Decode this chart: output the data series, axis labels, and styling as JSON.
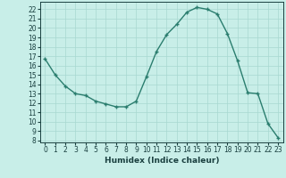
{
  "x": [
    0,
    1,
    2,
    3,
    4,
    5,
    6,
    7,
    8,
    9,
    10,
    11,
    12,
    13,
    14,
    15,
    16,
    17,
    18,
    19,
    20,
    21,
    22,
    23
  ],
  "y": [
    16.7,
    15.0,
    13.8,
    13.0,
    12.8,
    12.2,
    11.9,
    11.6,
    11.6,
    12.2,
    14.8,
    17.5,
    19.3,
    20.4,
    21.7,
    22.2,
    22.0,
    21.5,
    19.4,
    16.5,
    13.1,
    13.0,
    9.8,
    8.3
  ],
  "xlabel": "Humidex (Indice chaleur)",
  "xlim": [
    -0.5,
    23.5
  ],
  "ylim": [
    7.8,
    22.8
  ],
  "yticks": [
    8,
    9,
    10,
    11,
    12,
    13,
    14,
    15,
    16,
    17,
    18,
    19,
    20,
    21,
    22
  ],
  "xticks": [
    0,
    1,
    2,
    3,
    4,
    5,
    6,
    7,
    8,
    9,
    10,
    11,
    12,
    13,
    14,
    15,
    16,
    17,
    18,
    19,
    20,
    21,
    22,
    23
  ],
  "line_color": "#2a7d6e",
  "bg_color": "#c8eee8",
  "grid_color": "#a8d8d0",
  "font_color": "#1a4040",
  "tick_fontsize": 5.5,
  "xlabel_fontsize": 6.5
}
